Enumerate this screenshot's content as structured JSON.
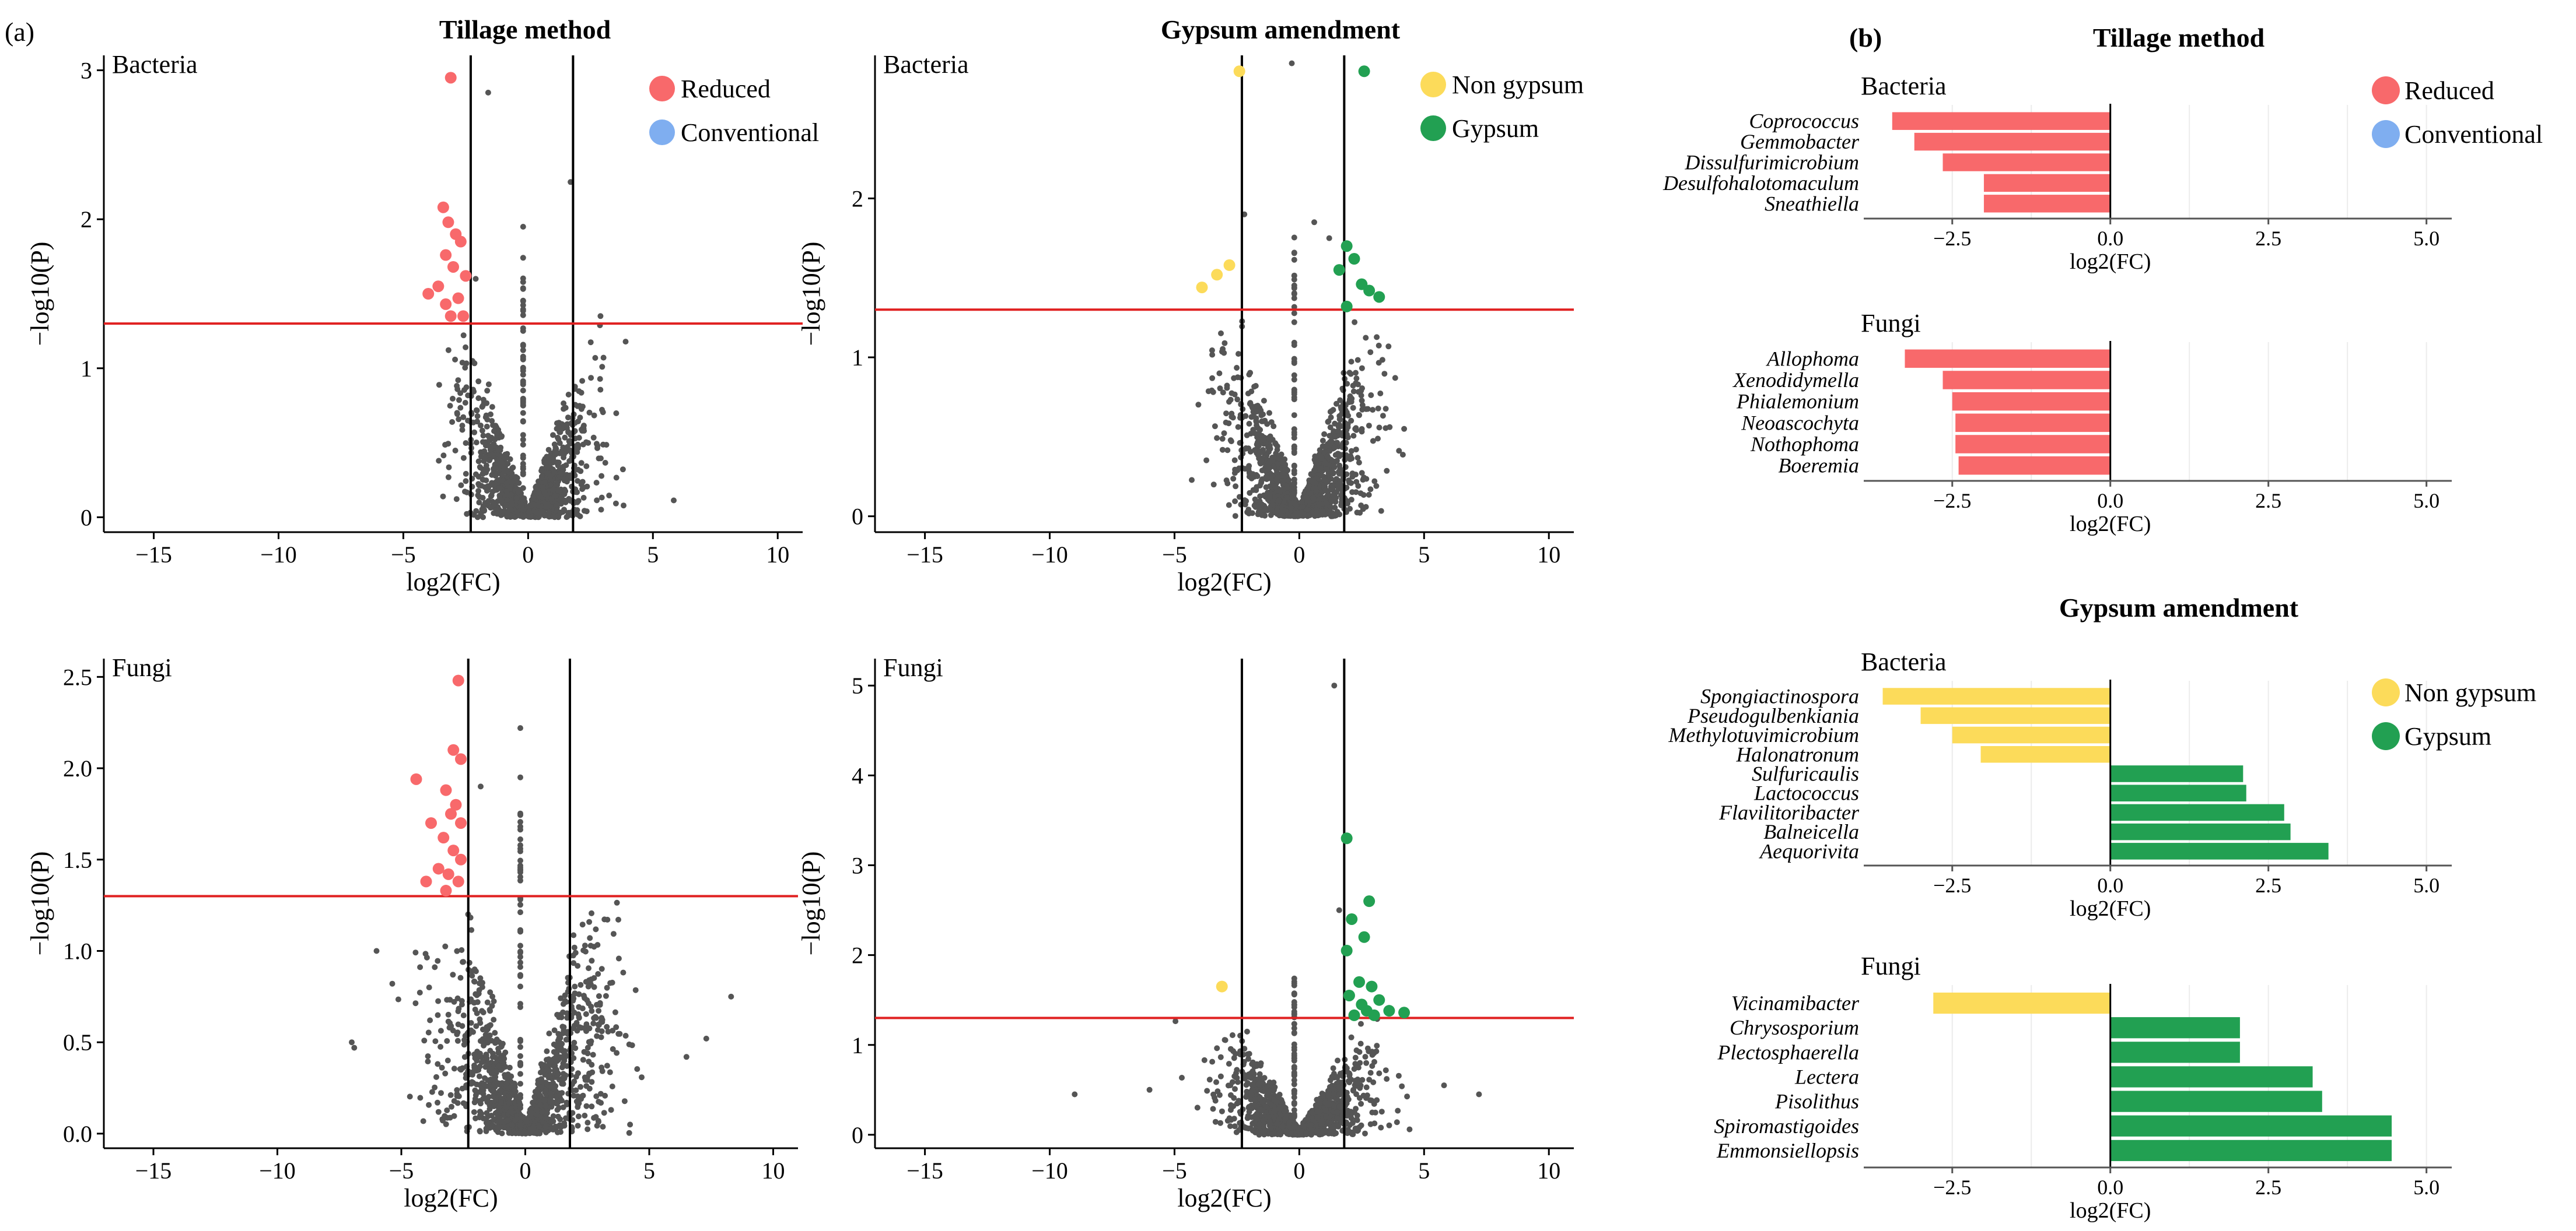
{
  "figure": {
    "panel_a_label": "(a)",
    "panel_b_label": "(b)",
    "col_title_tillage": "Tillage method",
    "col_title_gypsum": "Gypsum amendment",
    "b_title_tillage": "Tillage method",
    "b_title_gypsum": "Gypsum amendment"
  },
  "colors": {
    "reduced": "#F8696B",
    "conventional": "#7FAEF0",
    "non_gypsum": "#FCDB5A",
    "gypsum": "#22A052",
    "grey_points": "#555555",
    "threshold": "#E02020"
  },
  "chart_data": [
    {
      "id": "volcano-tillage-bacteria",
      "type": "scatter",
      "group_label": "Bacteria",
      "xlabel": "log2(FC)",
      "ylabel": "−log10(P)",
      "xlim": [
        -17,
        11
      ],
      "ylim": [
        -0.1,
        3.1
      ],
      "x_ticks": [
        -15,
        -10,
        -5,
        0,
        5,
        10
      ],
      "x_tick_labels": [
        "−15",
        "−10",
        "−5",
        "0",
        "5",
        "10"
      ],
      "y_ticks": [
        0,
        1,
        2,
        3
      ],
      "y_tick_labels": [
        "0",
        "1",
        "2",
        "3"
      ],
      "vlines": [
        -2.3,
        1.8
      ],
      "hline": 1.3,
      "legend": [
        {
          "name": "Reduced",
          "color_key": "reduced"
        },
        {
          "name": "Conventional",
          "color_key": "conventional"
        }
      ],
      "highlight_points": [
        {
          "x": -3.1,
          "y": 2.95,
          "color_key": "reduced"
        },
        {
          "x": -3.4,
          "y": 2.08,
          "color_key": "reduced"
        },
        {
          "x": -3.2,
          "y": 1.98,
          "color_key": "reduced"
        },
        {
          "x": -2.9,
          "y": 1.9,
          "color_key": "reduced"
        },
        {
          "x": -2.7,
          "y": 1.85,
          "color_key": "reduced"
        },
        {
          "x": -3.3,
          "y": 1.76,
          "color_key": "reduced"
        },
        {
          "x": -3.0,
          "y": 1.68,
          "color_key": "reduced"
        },
        {
          "x": -2.5,
          "y": 1.62,
          "color_key": "reduced"
        },
        {
          "x": -3.6,
          "y": 1.55,
          "color_key": "reduced"
        },
        {
          "x": -4.0,
          "y": 1.5,
          "color_key": "reduced"
        },
        {
          "x": -2.8,
          "y": 1.47,
          "color_key": "reduced"
        },
        {
          "x": -3.3,
          "y": 1.43,
          "color_key": "reduced"
        },
        {
          "x": -3.1,
          "y": 1.35,
          "color_key": "reduced"
        },
        {
          "x": -2.6,
          "y": 1.35,
          "color_key": "reduced"
        }
      ],
      "cloud": {
        "seed": 11,
        "n": 1200,
        "x_spread": 2.3,
        "y_max": 1.3,
        "extra": [
          [
            -0.2,
            1.95
          ],
          [
            1.7,
            2.25
          ],
          [
            -1.6,
            2.85
          ],
          [
            -2.1,
            1.6
          ],
          [
            2.9,
            1.35
          ]
        ]
      }
    },
    {
      "id": "volcano-gypsum-bacteria",
      "type": "scatter",
      "group_label": "Bacteria",
      "xlabel": "log2(FC)",
      "ylabel": "−log10(P)",
      "xlim": [
        -17,
        11
      ],
      "ylim": [
        -0.1,
        2.9
      ],
      "x_ticks": [
        -15,
        -10,
        -5,
        0,
        5,
        10
      ],
      "x_tick_labels": [
        "−15",
        "−10",
        "−5",
        "0",
        "5",
        "10"
      ],
      "y_ticks": [
        0,
        1,
        2
      ],
      "y_tick_labels": [
        "0",
        "1",
        "2"
      ],
      "vlines": [
        -2.3,
        1.8
      ],
      "hline": 1.3,
      "legend": [
        {
          "name": "Non gypsum",
          "color_key": "non_gypsum"
        },
        {
          "name": "Gypsum",
          "color_key": "gypsum"
        }
      ],
      "highlight_points": [
        {
          "x": -2.4,
          "y": 2.8,
          "color_key": "non_gypsum"
        },
        {
          "x": -2.8,
          "y": 1.58,
          "color_key": "non_gypsum"
        },
        {
          "x": -3.3,
          "y": 1.52,
          "color_key": "non_gypsum"
        },
        {
          "x": -3.9,
          "y": 1.44,
          "color_key": "non_gypsum"
        },
        {
          "x": 2.6,
          "y": 2.8,
          "color_key": "gypsum"
        },
        {
          "x": 1.9,
          "y": 1.7,
          "color_key": "gypsum"
        },
        {
          "x": 2.2,
          "y": 1.62,
          "color_key": "gypsum"
        },
        {
          "x": 1.6,
          "y": 1.55,
          "color_key": "gypsum"
        },
        {
          "x": 2.5,
          "y": 1.46,
          "color_key": "gypsum"
        },
        {
          "x": 2.8,
          "y": 1.42,
          "color_key": "gypsum"
        },
        {
          "x": 3.2,
          "y": 1.38,
          "color_key": "gypsum"
        },
        {
          "x": 1.9,
          "y": 1.32,
          "color_key": "gypsum"
        }
      ],
      "cloud": {
        "seed": 23,
        "n": 1300,
        "x_spread": 2.5,
        "y_max": 1.3,
        "extra": [
          [
            -0.3,
            2.85
          ],
          [
            -2.2,
            1.9
          ],
          [
            0.6,
            1.85
          ],
          [
            1.2,
            1.75
          ],
          [
            4.2,
            0.55
          ]
        ]
      }
    },
    {
      "id": "volcano-tillage-fungi",
      "type": "scatter",
      "group_label": "Fungi",
      "xlabel": "log2(FC)",
      "ylabel": "−log10(P)",
      "xlim": [
        -17,
        11
      ],
      "ylim": [
        -0.08,
        2.6
      ],
      "x_ticks": [
        -15,
        -10,
        -5,
        0,
        5,
        10
      ],
      "x_tick_labels": [
        "−15",
        "−10",
        "−5",
        "0",
        "5",
        "10"
      ],
      "y_ticks": [
        0.0,
        0.5,
        1.0,
        1.5,
        2.0,
        2.5
      ],
      "y_tick_labels": [
        "0.0",
        "0.5",
        "1.0",
        "1.5",
        "2.0",
        "2.5"
      ],
      "vlines": [
        -2.3,
        1.8
      ],
      "hline": 1.3,
      "legend": [],
      "highlight_points": [
        {
          "x": -2.7,
          "y": 2.48,
          "color_key": "reduced"
        },
        {
          "x": -2.9,
          "y": 2.1,
          "color_key": "reduced"
        },
        {
          "x": -2.6,
          "y": 2.05,
          "color_key": "reduced"
        },
        {
          "x": -4.4,
          "y": 1.94,
          "color_key": "reduced"
        },
        {
          "x": -3.2,
          "y": 1.88,
          "color_key": "reduced"
        },
        {
          "x": -2.8,
          "y": 1.8,
          "color_key": "reduced"
        },
        {
          "x": -3.0,
          "y": 1.75,
          "color_key": "reduced"
        },
        {
          "x": -2.6,
          "y": 1.7,
          "color_key": "reduced"
        },
        {
          "x": -3.8,
          "y": 1.7,
          "color_key": "reduced"
        },
        {
          "x": -3.3,
          "y": 1.62,
          "color_key": "reduced"
        },
        {
          "x": -2.9,
          "y": 1.55,
          "color_key": "reduced"
        },
        {
          "x": -2.6,
          "y": 1.5,
          "color_key": "reduced"
        },
        {
          "x": -3.5,
          "y": 1.45,
          "color_key": "reduced"
        },
        {
          "x": -3.1,
          "y": 1.42,
          "color_key": "reduced"
        },
        {
          "x": -2.7,
          "y": 1.38,
          "color_key": "reduced"
        },
        {
          "x": -4.0,
          "y": 1.38,
          "color_key": "reduced"
        },
        {
          "x": -3.2,
          "y": 1.33,
          "color_key": "reduced"
        }
      ],
      "cloud": {
        "seed": 37,
        "n": 1300,
        "x_spread": 3.0,
        "y_max": 1.3,
        "extra": [
          [
            -0.2,
            2.22
          ],
          [
            -7.0,
            0.5
          ],
          [
            -6.9,
            0.47
          ],
          [
            7.3,
            0.52
          ],
          [
            8.3,
            0.75
          ],
          [
            6.5,
            0.42
          ],
          [
            -6.0,
            1.0
          ],
          [
            -1.8,
            1.9
          ],
          [
            -0.2,
            1.95
          ]
        ]
      }
    },
    {
      "id": "volcano-gypsum-fungi",
      "type": "scatter",
      "group_label": "Fungi",
      "xlabel": "log2(FC)",
      "ylabel": "−log10(P)",
      "xlim": [
        -17,
        11
      ],
      "ylim": [
        -0.15,
        5.3
      ],
      "x_ticks": [
        -15,
        -10,
        -5,
        0,
        5,
        10
      ],
      "x_tick_labels": [
        "−15",
        "−10",
        "−5",
        "0",
        "5",
        "10"
      ],
      "y_ticks": [
        0,
        1,
        2,
        3,
        4,
        5
      ],
      "y_tick_labels": [
        "0",
        "1",
        "2",
        "3",
        "4",
        "5"
      ],
      "vlines": [
        -2.3,
        1.8
      ],
      "hline": 1.3,
      "legend": [],
      "highlight_points": [
        {
          "x": -3.1,
          "y": 1.65,
          "color_key": "non_gypsum"
        },
        {
          "x": 1.9,
          "y": 3.3,
          "color_key": "gypsum"
        },
        {
          "x": 2.8,
          "y": 2.6,
          "color_key": "gypsum"
        },
        {
          "x": 2.1,
          "y": 2.4,
          "color_key": "gypsum"
        },
        {
          "x": 2.6,
          "y": 2.2,
          "color_key": "gypsum"
        },
        {
          "x": 1.9,
          "y": 2.05,
          "color_key": "gypsum"
        },
        {
          "x": 2.4,
          "y": 1.7,
          "color_key": "gypsum"
        },
        {
          "x": 2.9,
          "y": 1.65,
          "color_key": "gypsum"
        },
        {
          "x": 2.0,
          "y": 1.55,
          "color_key": "gypsum"
        },
        {
          "x": 3.2,
          "y": 1.5,
          "color_key": "gypsum"
        },
        {
          "x": 2.5,
          "y": 1.45,
          "color_key": "gypsum"
        },
        {
          "x": 2.7,
          "y": 1.38,
          "color_key": "gypsum"
        },
        {
          "x": 3.6,
          "y": 1.38,
          "color_key": "gypsum"
        },
        {
          "x": 4.2,
          "y": 1.36,
          "color_key": "gypsum"
        },
        {
          "x": 3.0,
          "y": 1.33,
          "color_key": "gypsum"
        },
        {
          "x": 2.2,
          "y": 1.33,
          "color_key": "gypsum"
        }
      ],
      "cloud": {
        "seed": 53,
        "n": 1300,
        "x_spread": 2.6,
        "y_max": 1.3,
        "extra": [
          [
            1.4,
            5.0
          ],
          [
            -9.0,
            0.45
          ],
          [
            7.2,
            0.45
          ],
          [
            5.8,
            0.55
          ],
          [
            -6.0,
            0.5
          ],
          [
            1.6,
            2.5
          ]
        ]
      }
    },
    {
      "id": "bar-tillage-bacteria",
      "type": "bar",
      "orientation": "horizontal",
      "group_label": "Bacteria",
      "xlabel": "log2(FC)",
      "xlim": [
        -3.9,
        5.4
      ],
      "x_ticks": [
        -2.5,
        0,
        2.5,
        5
      ],
      "x_tick_labels": [
        "−2.5",
        "0.0",
        "2.5",
        "5.0"
      ],
      "legend": [
        {
          "name": "Reduced",
          "color_key": "reduced"
        },
        {
          "name": "Conventional",
          "color_key": "conventional"
        }
      ],
      "categories": [
        "Coprococcus",
        "Gemmobacter",
        "Dissulfurimicrobium",
        "Desulfohalotomaculum",
        "Sneathiella"
      ],
      "values": [
        -3.45,
        -3.1,
        -2.65,
        -2.0,
        -2.0
      ],
      "color_keys": [
        "reduced",
        "reduced",
        "reduced",
        "reduced",
        "reduced"
      ]
    },
    {
      "id": "bar-tillage-fungi",
      "type": "bar",
      "orientation": "horizontal",
      "group_label": "Fungi",
      "xlabel": "log2(FC)",
      "xlim": [
        -3.9,
        5.4
      ],
      "x_ticks": [
        -2.5,
        0,
        2.5,
        5
      ],
      "x_tick_labels": [
        "−2.5",
        "0.0",
        "2.5",
        "5.0"
      ],
      "legend": [],
      "categories": [
        "Allophoma",
        "Xenodidymella",
        "Phialemonium",
        "Neoascochyta",
        "Nothophoma",
        "Boeremia"
      ],
      "values": [
        -3.25,
        -2.65,
        -2.5,
        -2.45,
        -2.45,
        -2.4
      ],
      "color_keys": [
        "reduced",
        "reduced",
        "reduced",
        "reduced",
        "reduced",
        "reduced"
      ]
    },
    {
      "id": "bar-gypsum-bacteria",
      "type": "bar",
      "orientation": "horizontal",
      "group_label": "Bacteria",
      "xlabel": "log2(FC)",
      "xlim": [
        -3.9,
        5.4
      ],
      "x_ticks": [
        -2.5,
        0,
        2.5,
        5
      ],
      "x_tick_labels": [
        "−2.5",
        "0.0",
        "2.5",
        "5.0"
      ],
      "legend": [
        {
          "name": "Non gypsum",
          "color_key": "non_gypsum"
        },
        {
          "name": "Gypsum",
          "color_key": "gypsum"
        }
      ],
      "categories": [
        "Spongiactinospora",
        "Pseudogulbenkiania",
        "Methylotuvimicrobium",
        "Halonatronum",
        "Sulfuricaulis",
        "Lactococcus",
        "Flavilitoribacter",
        "Balneicella",
        "Aequorivita"
      ],
      "values": [
        -3.6,
        -3.0,
        -2.5,
        -2.05,
        2.1,
        2.15,
        2.75,
        2.85,
        3.45
      ],
      "color_keys": [
        "non_gypsum",
        "non_gypsum",
        "non_gypsum",
        "non_gypsum",
        "gypsum",
        "gypsum",
        "gypsum",
        "gypsum",
        "gypsum"
      ]
    },
    {
      "id": "bar-gypsum-fungi",
      "type": "bar",
      "orientation": "horizontal",
      "group_label": "Fungi",
      "xlabel": "log2(FC)",
      "xlim": [
        -3.9,
        5.4
      ],
      "x_ticks": [
        -2.5,
        0,
        2.5,
        5
      ],
      "x_tick_labels": [
        "−2.5",
        "0.0",
        "2.5",
        "5.0"
      ],
      "legend": [],
      "categories": [
        "Vicinamibacter",
        "Chrysosporium",
        "Plectosphaerella",
        "Lectera",
        "Pisolithus",
        "Spiromastigoides",
        "Emmonsiellopsis"
      ],
      "values": [
        -2.8,
        2.05,
        2.05,
        3.2,
        3.35,
        4.45,
        4.45
      ],
      "color_keys": [
        "non_gypsum",
        "gypsum",
        "gypsum",
        "gypsum",
        "gypsum",
        "gypsum",
        "gypsum"
      ]
    }
  ]
}
